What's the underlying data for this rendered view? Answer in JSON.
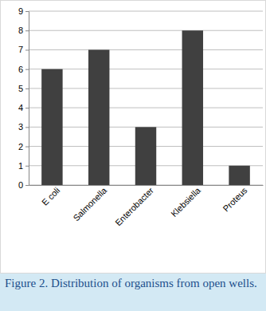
{
  "chart_data": {
    "type": "bar",
    "title": "Figure 2. Distribution of organisms from open wells.",
    "categories": [
      "E coli",
      "Salmonella",
      "Enterobacter",
      "Klebsiella",
      "Proteus"
    ],
    "values": [
      6,
      7,
      3,
      8,
      1
    ],
    "color": "#404040",
    "ylim": [
      0,
      9
    ],
    "yticks": [
      0,
      1,
      2,
      3,
      4,
      5,
      6,
      7,
      8,
      9
    ],
    "grid": true
  }
}
